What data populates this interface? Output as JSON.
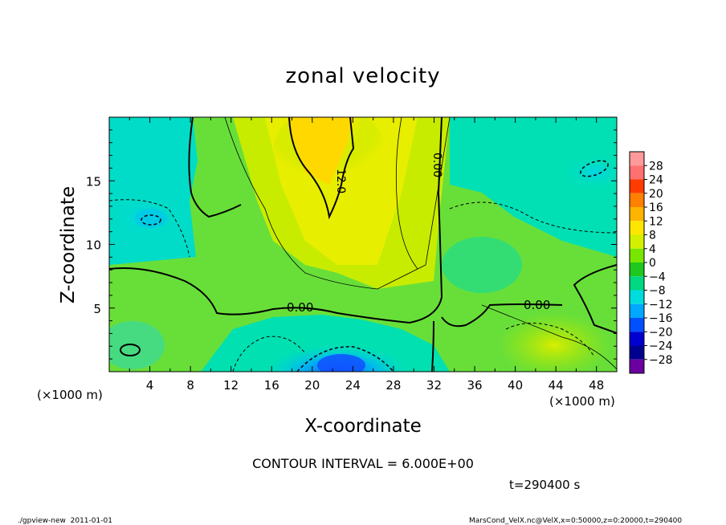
{
  "chart_data": {
    "type": "heatmap",
    "title": "zonal velocity",
    "xlabel": "X-coordinate",
    "ylabel": "Z-coordinate",
    "x_unit": "(×1000 m)",
    "y_unit": "(×1000 m)",
    "xlim": [
      0,
      50
    ],
    "ylim": [
      0,
      20
    ],
    "x_ticks": [
      "4",
      "8",
      "12",
      "16",
      "20",
      "24",
      "28",
      "32",
      "36",
      "40",
      "44",
      "48"
    ],
    "y_ticks": [
      "5",
      "10",
      "15"
    ],
    "colorbar_levels": [
      "28",
      "24",
      "20",
      "16",
      "12",
      "8",
      "4",
      "0",
      "−4",
      "−8",
      "−12",
      "−16",
      "−20",
      "−24",
      "−28"
    ],
    "colorbar_colors": [
      "#ff9a9a",
      "#ff7070",
      "#ff3c00",
      "#ff8000",
      "#ffb400",
      "#ffe600",
      "#d2f000",
      "#78e600",
      "#1ec81e",
      "#00d882",
      "#00dcdc",
      "#00a8ff",
      "#0050ff",
      "#0000d0",
      "#000090",
      "#6a00a0"
    ],
    "contour_labels": [
      "0.00",
      "0.00",
      "0.00",
      "12.0"
    ],
    "contour_interval": "CONTOUR INTERVAL = 6.000E+00",
    "time_label": "t=290400 s",
    "footer_left": "./gpview-new  2011-01-01",
    "footer_right": "MarsCond_VelX.nc@VelX,x=0:50000,z=0:20000,t=290400",
    "field_description": "zonal velocity field: yellow jet (~10–12) near x≈18–26, z≈6–20; near-zero contour separating; cyan negative regions at upper-left, upper-right corner and near surface x≈20–26 (blue core ~ -12)"
  }
}
